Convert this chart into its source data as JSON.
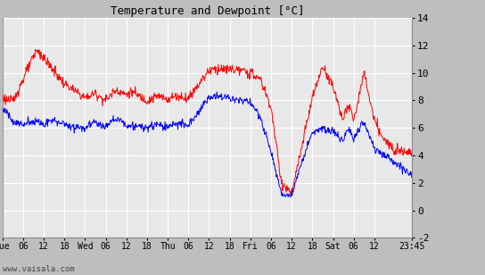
{
  "title": "Temperature and Dewpoint [°C]",
  "ylim": [
    -2,
    14
  ],
  "yticks": [
    -2,
    0,
    2,
    4,
    6,
    8,
    10,
    12,
    14
  ],
  "background_color": "#bebebe",
  "plot_bg_color": "#e8e8e8",
  "grid_color": "#ffffff",
  "watermark": "www.vaisala.com",
  "red_color": "#ff0000",
  "blue_color": "#0000ff",
  "x_tick_labels": [
    "Tue",
    "06",
    "12",
    "18",
    "Wed",
    "06",
    "12",
    "18",
    "Thu",
    "06",
    "12",
    "18",
    "Fri",
    "06",
    "12",
    "18",
    "Sat",
    "06",
    "12",
    "23:45"
  ],
  "x_tick_positions": [
    0,
    6,
    12,
    18,
    24,
    30,
    36,
    42,
    48,
    54,
    60,
    66,
    72,
    78,
    84,
    90,
    96,
    102,
    108,
    119
  ],
  "total_hours": 119
}
